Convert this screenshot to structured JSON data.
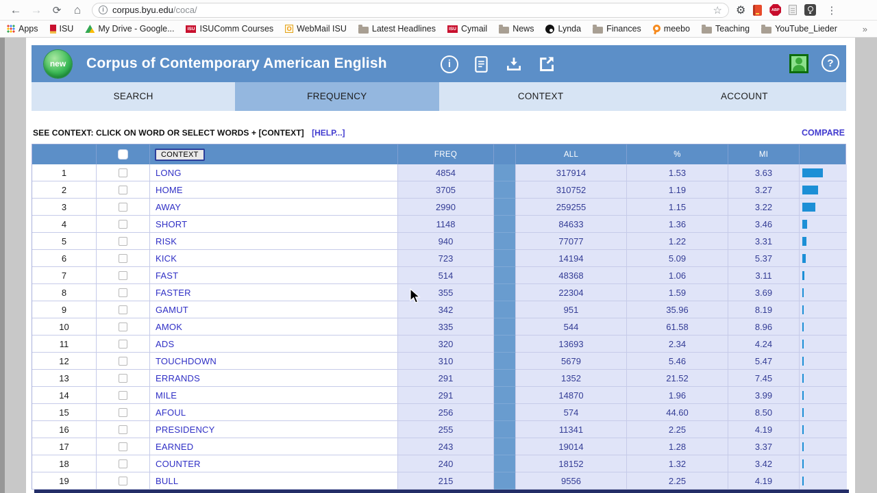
{
  "browser": {
    "url": {
      "host": "corpus.byu.edu",
      "path": "/coca/"
    },
    "bookmarks_bar": {
      "items": [
        {
          "label": "Apps",
          "icon": "apps-grid-icon"
        },
        {
          "label": "ISU",
          "icon": "isu-flag-icon"
        },
        {
          "label": "My Drive - Google...",
          "icon": "google-drive-icon"
        },
        {
          "label": "ISUComm Courses",
          "icon": "isu-logo-icon"
        },
        {
          "label": "WebMail ISU",
          "icon": "webmail-icon"
        },
        {
          "label": "Latest Headlines",
          "icon": "folder-icon"
        },
        {
          "label": "Cymail",
          "icon": "isu-logo-icon"
        },
        {
          "label": "News",
          "icon": "folder-icon"
        },
        {
          "label": "Lynda",
          "icon": "lynda-icon"
        },
        {
          "label": "Finances",
          "icon": "folder-icon"
        },
        {
          "label": "meebo",
          "icon": "meebo-icon"
        },
        {
          "label": "Teaching",
          "icon": "folder-icon"
        },
        {
          "label": "YouTube_Lieder",
          "icon": "folder-icon"
        }
      ],
      "overflow_chevron": "»"
    }
  },
  "coca": {
    "badge": "new",
    "title": "Corpus of Contemporary American English",
    "tabs": [
      {
        "label": "SEARCH",
        "active": false
      },
      {
        "label": "FREQUENCY",
        "active": true
      },
      {
        "label": "CONTEXT",
        "active": false
      },
      {
        "label": "ACCOUNT",
        "active": false
      }
    ],
    "note": {
      "text": "SEE CONTEXT: CLICK ON WORD OR SELECT WORDS + [CONTEXT]",
      "help_link": "[HELP...]",
      "compare_link": "COMPARE"
    }
  },
  "table": {
    "headers": {
      "context": "CONTEXT",
      "freq": "FREQ",
      "all": "ALL",
      "percent": "%",
      "mi": "MI"
    },
    "rows": [
      {
        "rank": 1,
        "word": "LONG",
        "freq": 4854,
        "all": 317914,
        "percent": "1.53",
        "mi": "3.63"
      },
      {
        "rank": 2,
        "word": "HOME",
        "freq": 3705,
        "all": 310752,
        "percent": "1.19",
        "mi": "3.27"
      },
      {
        "rank": 3,
        "word": "AWAY",
        "freq": 2990,
        "all": 259255,
        "percent": "1.15",
        "mi": "3.22"
      },
      {
        "rank": 4,
        "word": "SHORT",
        "freq": 1148,
        "all": 84633,
        "percent": "1.36",
        "mi": "3.46"
      },
      {
        "rank": 5,
        "word": "RISK",
        "freq": 940,
        "all": 77077,
        "percent": "1.22",
        "mi": "3.31"
      },
      {
        "rank": 6,
        "word": "KICK",
        "freq": 723,
        "all": 14194,
        "percent": "5.09",
        "mi": "5.37"
      },
      {
        "rank": 7,
        "word": "FAST",
        "freq": 514,
        "all": 48368,
        "percent": "1.06",
        "mi": "3.11"
      },
      {
        "rank": 8,
        "word": "FASTER",
        "freq": 355,
        "all": 22304,
        "percent": "1.59",
        "mi": "3.69"
      },
      {
        "rank": 9,
        "word": "GAMUT",
        "freq": 342,
        "all": 951,
        "percent": "35.96",
        "mi": "8.19"
      },
      {
        "rank": 10,
        "word": "AMOK",
        "freq": 335,
        "all": 544,
        "percent": "61.58",
        "mi": "8.96"
      },
      {
        "rank": 11,
        "word": "ADS",
        "freq": 320,
        "all": 13693,
        "percent": "2.34",
        "mi": "4.24"
      },
      {
        "rank": 12,
        "word": "TOUCHDOWN",
        "freq": 310,
        "all": 5679,
        "percent": "5.46",
        "mi": "5.47"
      },
      {
        "rank": 13,
        "word": "ERRANDS",
        "freq": 291,
        "all": 1352,
        "percent": "21.52",
        "mi": "7.45"
      },
      {
        "rank": 14,
        "word": "MILE",
        "freq": 291,
        "all": 14870,
        "percent": "1.96",
        "mi": "3.99"
      },
      {
        "rank": 15,
        "word": "AFOUL",
        "freq": 256,
        "all": 574,
        "percent": "44.60",
        "mi": "8.50"
      },
      {
        "rank": 16,
        "word": "PRESIDENCY",
        "freq": 255,
        "all": 11341,
        "percent": "2.25",
        "mi": "4.19"
      },
      {
        "rank": 17,
        "word": "EARNED",
        "freq": 243,
        "all": 19014,
        "percent": "1.28",
        "mi": "3.37"
      },
      {
        "rank": 18,
        "word": "COUNTER",
        "freq": 240,
        "all": 18152,
        "percent": "1.32",
        "mi": "3.42"
      },
      {
        "rank": 19,
        "word": "BULL",
        "freq": 215,
        "all": 9556,
        "percent": "2.25",
        "mi": "4.19"
      }
    ]
  },
  "colors": {
    "accent_blue": "#5c8fc8",
    "active_tab": "#94b7df",
    "bar_blue": "#1c8fd6",
    "link": "#423bcf"
  }
}
